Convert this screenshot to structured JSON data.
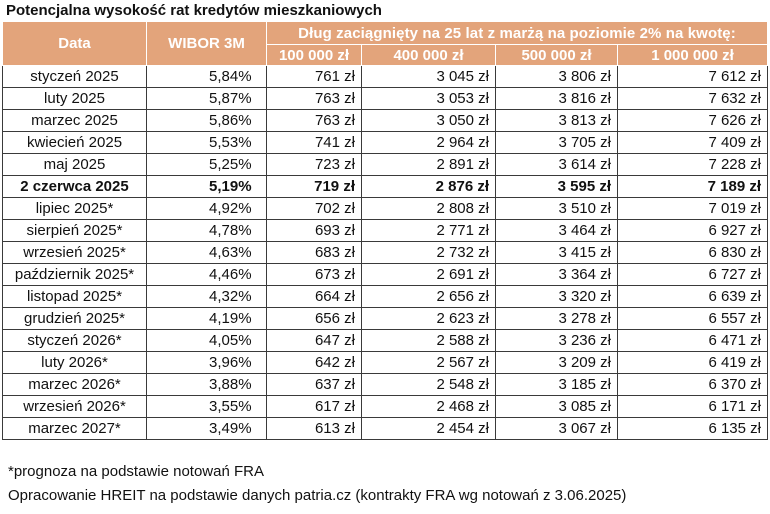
{
  "title": "Potencjalna wysokość rat kredytów mieszkaniowych",
  "header": {
    "date": "Data",
    "wibor": "WIBOR 3M",
    "span": "Dług zaciągnięty na 25 lat z marżą na poziomie 2% na kwotę:",
    "amounts": [
      "100 000 zł",
      "400 000 zł",
      "500 000 zł",
      "1 000 000 zł"
    ]
  },
  "rows": [
    {
      "date": "styczeń 2025",
      "wibor": "5,84%",
      "v": [
        "761 zł",
        "3 045 zł",
        "3 806 zł",
        "7 612 zł"
      ]
    },
    {
      "date": "luty 2025",
      "wibor": "5,87%",
      "v": [
        "763 zł",
        "3 053 zł",
        "3 816 zł",
        "7 632 zł"
      ]
    },
    {
      "date": "marzec 2025",
      "wibor": "5,86%",
      "v": [
        "763 zł",
        "3 050 zł",
        "3 813 zł",
        "7 626 zł"
      ]
    },
    {
      "date": "kwiecień 2025",
      "wibor": "5,53%",
      "v": [
        "741 zł",
        "2 964 zł",
        "3 705 zł",
        "7 409 zł"
      ]
    },
    {
      "date": "maj 2025",
      "wibor": "5,25%",
      "v": [
        "723 zł",
        "2 891 zł",
        "3 614 zł",
        "7 228 zł"
      ]
    },
    {
      "date": "2 czerwca 2025",
      "wibor": "5,19%",
      "v": [
        "719 zł",
        "2 876 zł",
        "3 595 zł",
        "7 189 zł"
      ]
    },
    {
      "date": "lipiec 2025*",
      "wibor": "4,92%",
      "v": [
        "702 zł",
        "2 808 zł",
        "3 510 zł",
        "7 019 zł"
      ]
    },
    {
      "date": "sierpień 2025*",
      "wibor": "4,78%",
      "v": [
        "693 zł",
        "2 771 zł",
        "3 464 zł",
        "6 927 zł"
      ]
    },
    {
      "date": "wrzesień 2025*",
      "wibor": "4,63%",
      "v": [
        "683 zł",
        "2 732 zł",
        "3 415 zł",
        "6 830 zł"
      ]
    },
    {
      "date": "październik 2025*",
      "wibor": "4,46%",
      "v": [
        "673 zł",
        "2 691 zł",
        "3 364 zł",
        "6 727 zł"
      ]
    },
    {
      "date": "listopad 2025*",
      "wibor": "4,32%",
      "v": [
        "664 zł",
        "2 656 zł",
        "3 320 zł",
        "6 639 zł"
      ]
    },
    {
      "date": "grudzień 2025*",
      "wibor": "4,19%",
      "v": [
        "656 zł",
        "2 623 zł",
        "3 278 zł",
        "6 557 zł"
      ]
    },
    {
      "date": "styczeń 2026*",
      "wibor": "4,05%",
      "v": [
        "647 zł",
        "2 588 zł",
        "3 236 zł",
        "6 471 zł"
      ]
    },
    {
      "date": "luty 2026*",
      "wibor": "3,96%",
      "v": [
        "642 zł",
        "2 567 zł",
        "3 209 zł",
        "6 419 zł"
      ]
    },
    {
      "date": "marzec 2026*",
      "wibor": "3,88%",
      "v": [
        "637 zł",
        "2 548 zł",
        "3 185 zł",
        "6 370 zł"
      ]
    },
    {
      "date": "wrzesień 2026*",
      "wibor": "3,55%",
      "v": [
        "617 zł",
        "2 468 zł",
        "3 085 zł",
        "6 171 zł"
      ]
    },
    {
      "date": "marzec 2027*",
      "wibor": "3,49%",
      "v": [
        "613 zł",
        "2 454 zł",
        "3 067 zł",
        "6 135 zł"
      ]
    }
  ],
  "footnote": "*prognoza na podstawie notowań FRA",
  "source": "Opracowanie HREIT na podstawie danych patria.cz (kontrakty FRA wg notowań z 3.06.2025)",
  "colors": {
    "header_bg": "#e3a47b",
    "header_text": "#ffffff"
  }
}
